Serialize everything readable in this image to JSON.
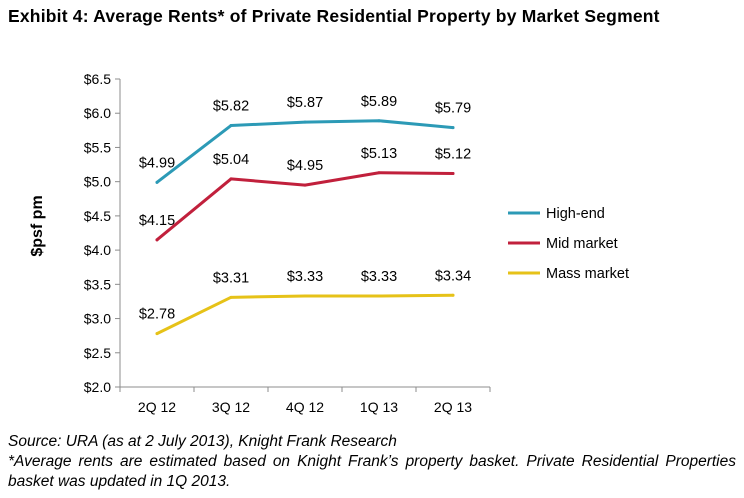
{
  "exhibit": {
    "title": "Exhibit 4: Average Rents* of Private Residential Property by Market Segment"
  },
  "chart_data": {
    "type": "line",
    "title": "Exhibit 4: Average Rents* of Private Residential Property by Market Segment",
    "xlabel": "",
    "ylabel": "$psf pm",
    "categories": [
      "2Q 12",
      "3Q 12",
      "4Q 12",
      "1Q 13",
      "2Q 13"
    ],
    "ylim": [
      2.0,
      6.5
    ],
    "yticks": [
      2.0,
      2.5,
      3.0,
      3.5,
      4.0,
      4.5,
      5.0,
      5.5,
      6.0,
      6.5
    ],
    "ytick_labels": [
      "$2.0",
      "$2.5",
      "$3.0",
      "$3.5",
      "$4.0",
      "$4.5",
      "$5.0",
      "$5.5",
      "$6.0",
      "$6.5"
    ],
    "grid": false,
    "legend_position": "right",
    "series": [
      {
        "name": "High-end",
        "color": "#2c9ab6",
        "values": [
          4.99,
          5.82,
          5.87,
          5.89,
          5.79
        ],
        "labels": [
          "$4.99",
          "$5.82",
          "$5.87",
          "$5.89",
          "$5.79"
        ]
      },
      {
        "name": "Mid market",
        "color": "#c1203c",
        "values": [
          4.15,
          5.04,
          4.95,
          5.13,
          5.12
        ],
        "labels": [
          "$4.15",
          "$5.04",
          "$4.95",
          "$5.13",
          "$5.12"
        ]
      },
      {
        "name": "Mass market",
        "color": "#e6c218",
        "values": [
          2.78,
          3.31,
          3.33,
          3.33,
          3.34
        ],
        "labels": [
          "$2.78",
          "$3.31",
          "$3.33",
          "$3.33",
          "$3.34"
        ]
      }
    ]
  },
  "footer": {
    "source": "Source: URA (as at 2 July 2013), Knight Frank Research",
    "note": "*Average rents are estimated based on Knight Frank’s property basket. Private Residential Properties basket was updated in 1Q 2013."
  }
}
